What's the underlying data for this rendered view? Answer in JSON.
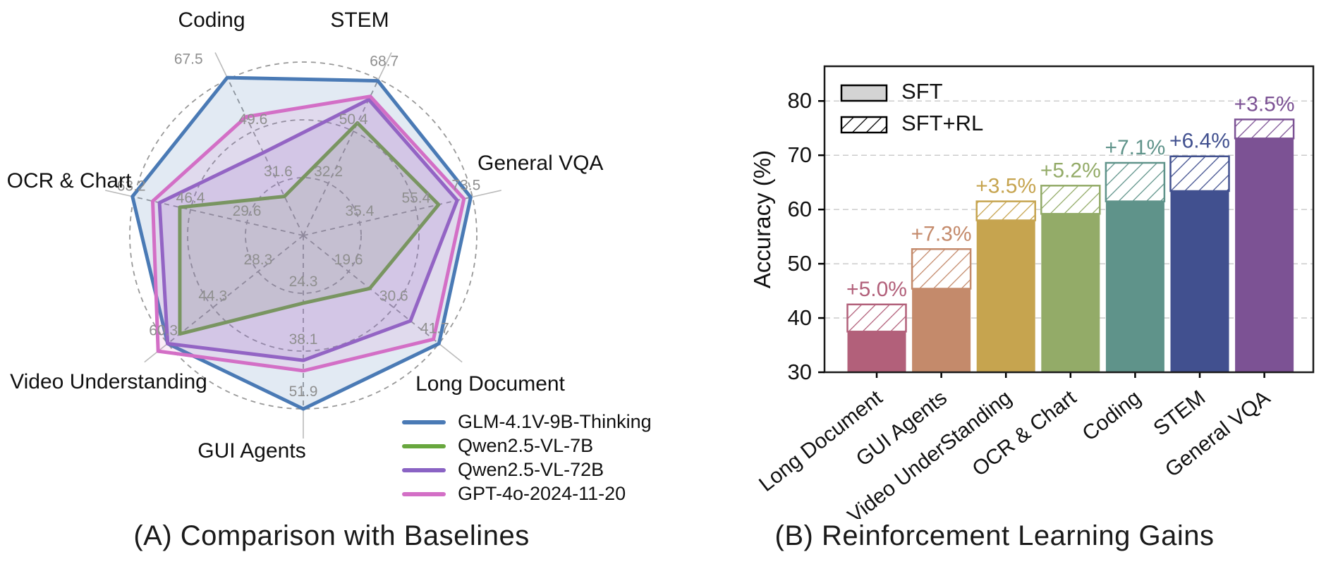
{
  "captions": {
    "panel_a": "(A) Comparison with Baselines",
    "panel_b": "(B) Reinforcement Learning Gains"
  },
  "chart_data": [
    {
      "type": "radar",
      "title": "(A) Comparison with Baselines",
      "axes": [
        {
          "label": "Coding",
          "ticks": [
            31.6,
            49.6,
            67.5
          ]
        },
        {
          "label": "STEM",
          "ticks": [
            32.2,
            50.4,
            68.7
          ]
        },
        {
          "label": "General VQA",
          "ticks": [
            35.4,
            55.4,
            73.5
          ]
        },
        {
          "label": "Long Document",
          "ticks": [
            19.6,
            30.6,
            41.7
          ]
        },
        {
          "label": "GUI Agents",
          "ticks": [
            24.3,
            38.1,
            51.9
          ]
        },
        {
          "label": "Video Understanding",
          "ticks": [
            28.3,
            44.3,
            60.3
          ]
        },
        {
          "label": "OCR & Chart",
          "ticks": [
            29.6,
            46.4,
            63.2
          ]
        }
      ],
      "grid": {
        "rings": 3,
        "style": "dashed"
      },
      "series": [
        {
          "name": "GLM-4.1V-9B-Thinking",
          "color": "#4a7ab5",
          "fill_opacity": 0.16,
          "fractions": [
            1.01,
            0.99,
            0.99,
            1.0,
            1.0,
            1.0,
            1.01
          ]
        },
        {
          "name": "Qwen2.5-VL-7B",
          "color": "#68a73e",
          "fill_opacity": 0.15,
          "fractions": [
            0.25,
            0.72,
            0.8,
            0.49,
            0.39,
            0.91,
            0.73
          ]
        },
        {
          "name": "Qwen2.5-VL-72B",
          "color": "#8a63c4",
          "fill_opacity": 0.17,
          "fractions": [
            0.53,
            0.87,
            0.91,
            0.79,
            0.72,
            1.0,
            0.85
          ]
        },
        {
          "name": "GPT-4o-2024-11-20",
          "color": "#d36fc6",
          "fill_opacity": 0.12,
          "fractions": [
            0.76,
            0.89,
            0.95,
            0.96,
            0.78,
            1.07,
            0.89
          ]
        }
      ]
    },
    {
      "type": "bar",
      "title": "(B) Reinforcement Learning Gains",
      "ylabel": "Accuracy (%)",
      "yticks": [
        30,
        40,
        50,
        60,
        70,
        80
      ],
      "ylim": [
        30,
        86.4
      ],
      "grid": "dashed-horizontal",
      "legend": [
        {
          "label": "SFT",
          "swatch": "solid-gray"
        },
        {
          "label": "SFT+RL",
          "swatch": "hatched"
        }
      ],
      "categories": [
        "Long Document",
        "GUI Agents",
        "Video UnderStanding",
        "OCR & Chart",
        "Coding",
        "STEM",
        "General VQA"
      ],
      "series": [
        {
          "name": "SFT",
          "values": [
            37.5,
            45.4,
            58.0,
            59.2,
            61.5,
            63.4,
            73.1
          ]
        },
        {
          "name": "SFT+RL",
          "values": [
            42.5,
            52.7,
            61.5,
            64.4,
            68.6,
            69.8,
            76.6
          ]
        }
      ],
      "gain_labels": [
        "+5.0%",
        "+7.3%",
        "+3.5%",
        "+5.2%",
        "+7.1%",
        "+6.4%",
        "+3.5%"
      ],
      "bar_colors": [
        "#b2607a",
        "#c48a6b",
        "#c6a44f",
        "#93ab68",
        "#5f938a",
        "#41508f",
        "#7c5294"
      ],
      "legend_gray": "#d4d4d4"
    }
  ]
}
